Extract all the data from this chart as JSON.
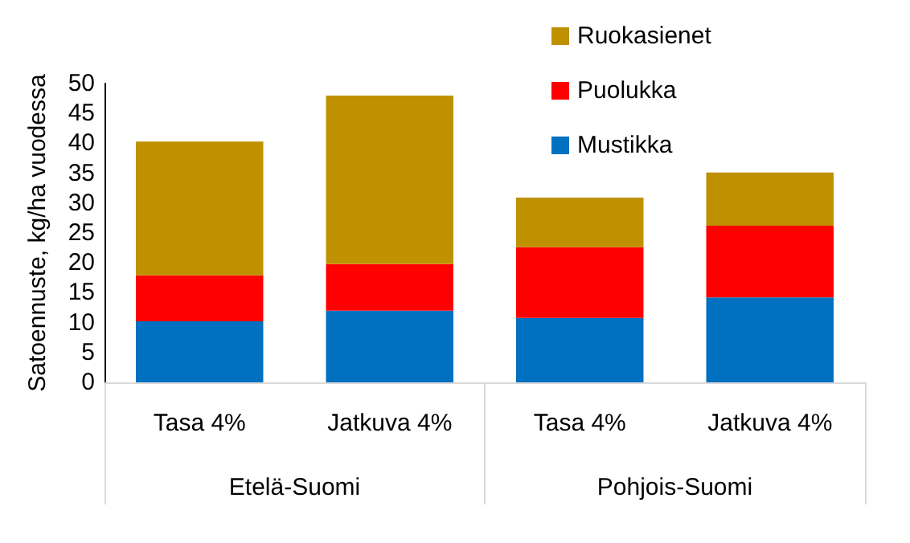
{
  "chart_data": {
    "type": "bar",
    "stacked": true,
    "ylabel": "Satoennuste, kg/ha vuodessa",
    "categories": [
      "Tasa 4%",
      "Jatkuva 4%",
      "Tasa 4%",
      "Jatkuva 4%"
    ],
    "annotations": [
      "Etelä-Suomi",
      "Pohjois-Suomi"
    ],
    "series": [
      {
        "name": "Mustikka",
        "color": "#0070c0",
        "values": [
          10.2,
          12.0,
          10.8,
          14.2
        ]
      },
      {
        "name": "Puolukka",
        "color": "#ff0000",
        "values": [
          7.7,
          7.8,
          11.8,
          12.0
        ]
      },
      {
        "name": "Ruokasienet",
        "color": "#bf9000",
        "values": [
          22.4,
          28.2,
          8.3,
          8.9
        ]
      }
    ],
    "ylim": [
      0,
      50
    ],
    "yticks": [
      0,
      5,
      10,
      15,
      20,
      25,
      30,
      35,
      40,
      45,
      50
    ],
    "grid": false,
    "legend": "top right"
  }
}
